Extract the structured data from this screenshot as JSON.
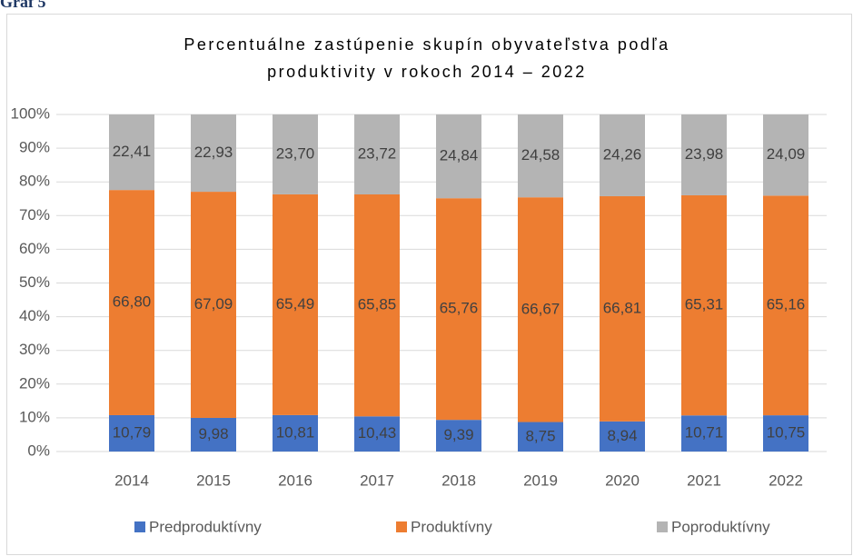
{
  "caption": "Graf 5",
  "chart_data": {
    "type": "stacked_bar",
    "title": [
      "Percentuálne zastúpenie skupín obyvateľstva podľa",
      "produktivity v rokoch 2014 – 2022"
    ],
    "categories": [
      "2014",
      "2015",
      "2016",
      "2017",
      "2018",
      "2019",
      "2020",
      "2021",
      "2022"
    ],
    "series": [
      {
        "name": "Predproduktívny",
        "color": "#4472c4",
        "values": [
          10.79,
          9.98,
          10.81,
          10.43,
          9.39,
          8.75,
          8.94,
          10.71,
          10.75
        ],
        "value_labels": [
          "10,79",
          "9,98",
          "10,81",
          "10,43",
          "9,39",
          "8,75",
          "8,94",
          "10,71",
          "10,75"
        ]
      },
      {
        "name": "Produktívny",
        "color": "#ed7d31",
        "values": [
          66.8,
          67.09,
          65.49,
          65.85,
          65.76,
          66.67,
          66.81,
          65.31,
          65.16
        ],
        "value_labels": [
          "66,80",
          "67,09",
          "65,49",
          "65,85",
          "65,76",
          "66,67",
          "66,81",
          "65,31",
          "65,16"
        ]
      },
      {
        "name": "Poproduktívny",
        "color": "#b4b4b4",
        "values": [
          22.41,
          22.93,
          23.7,
          23.72,
          24.84,
          24.58,
          24.26,
          23.98,
          24.09
        ],
        "value_labels": [
          "22,41",
          "22,93",
          "23,70",
          "23,72",
          "24,84",
          "24,58",
          "24,26",
          "23,98",
          "24,09"
        ]
      }
    ],
    "ylim": [
      0,
      100
    ],
    "yticks": [
      {
        "value": 0,
        "label": "0%"
      },
      {
        "value": 10,
        "label": "10%"
      },
      {
        "value": 20,
        "label": "20%"
      },
      {
        "value": 30,
        "label": "30%"
      },
      {
        "value": 40,
        "label": "40%"
      },
      {
        "value": 50,
        "label": "50%"
      },
      {
        "value": 60,
        "label": "60%"
      },
      {
        "value": 70,
        "label": "70%"
      },
      {
        "value": 80,
        "label": "80%"
      },
      {
        "value": 90,
        "label": "90%"
      },
      {
        "value": 100,
        "label": "100%"
      }
    ],
    "grid": true,
    "legend": "bottom"
  }
}
